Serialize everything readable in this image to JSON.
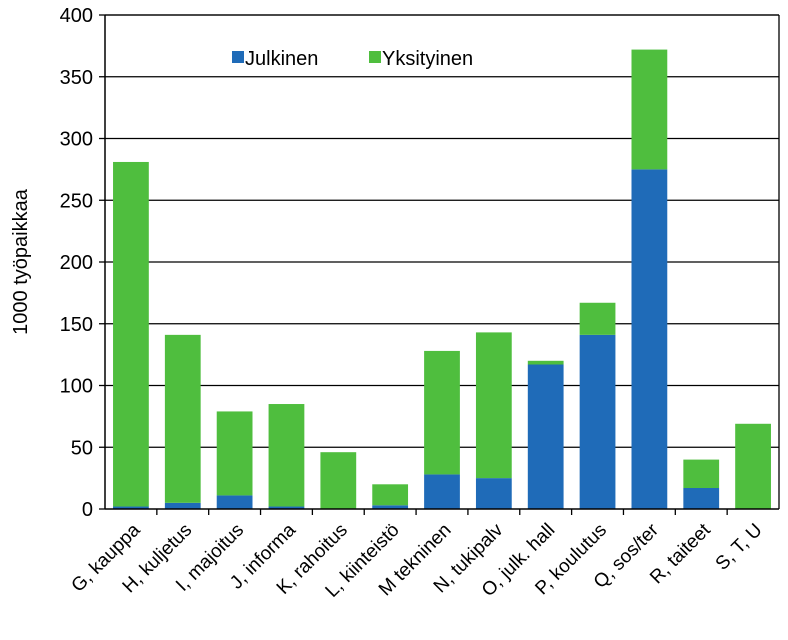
{
  "chart_data": {
    "type": "bar",
    "stacked": true,
    "title": "",
    "xlabel": "",
    "ylabel": "1000 työpaikkaa",
    "ylim": [
      0,
      400
    ],
    "yticks": [
      0,
      50,
      100,
      150,
      200,
      250,
      300,
      350,
      400
    ],
    "grid": true,
    "legend_position": "top-center",
    "categories": [
      "G, kauppa",
      "H, kuljetus",
      "I, majoitus",
      "J, informa",
      "K, rahoitus",
      "L, kiinteistö",
      "M tekninen",
      "N, tukipalv",
      "O, julk. hall",
      "P, koulutus",
      "Q, sos/ter",
      "R, taiteet",
      "S, T, U"
    ],
    "series": [
      {
        "name": "Julkinen",
        "color": "#1f6bb8",
        "values": [
          2,
          5,
          11,
          2,
          0,
          3,
          28,
          25,
          117,
          141,
          275,
          17,
          0
        ]
      },
      {
        "name": "Yksityinen",
        "color": "#4fbe3e",
        "values": [
          279,
          136,
          68,
          83,
          46,
          17,
          100,
          118,
          3,
          26,
          97,
          23,
          69
        ]
      }
    ]
  }
}
